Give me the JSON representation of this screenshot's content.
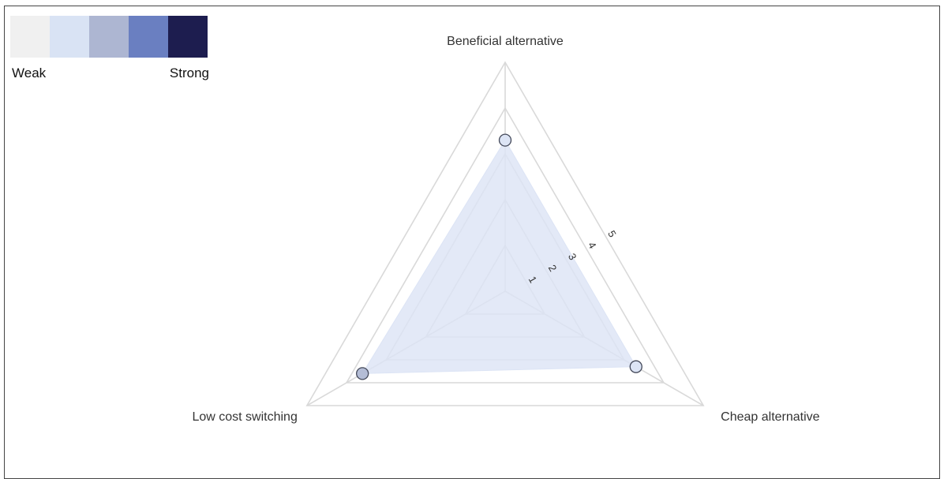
{
  "legend": {
    "weak_label": "Weak",
    "strong_label": "Strong",
    "colors": [
      "#f0f0f0",
      "#d9e3f4",
      "#adb6d2",
      "#6a7fc1",
      "#1d1d4f"
    ]
  },
  "chart_data": {
    "type": "radar",
    "axes": [
      "Beneficial alternative",
      "Cheap alternative",
      "Low cost switching"
    ],
    "scale_ticks": [
      1,
      2,
      3,
      4,
      5
    ],
    "rmax": 5,
    "grid": true,
    "series": [
      {
        "values": [
          3.3,
          3.3,
          3.6
        ],
        "fill_color": "#dce4f5",
        "stroke_color": "#dce4f5",
        "marker_fill": [
          "#dce4f5",
          "#dce4f5",
          "#b4bdd6"
        ],
        "marker_stroke": "#44495a"
      }
    ]
  }
}
